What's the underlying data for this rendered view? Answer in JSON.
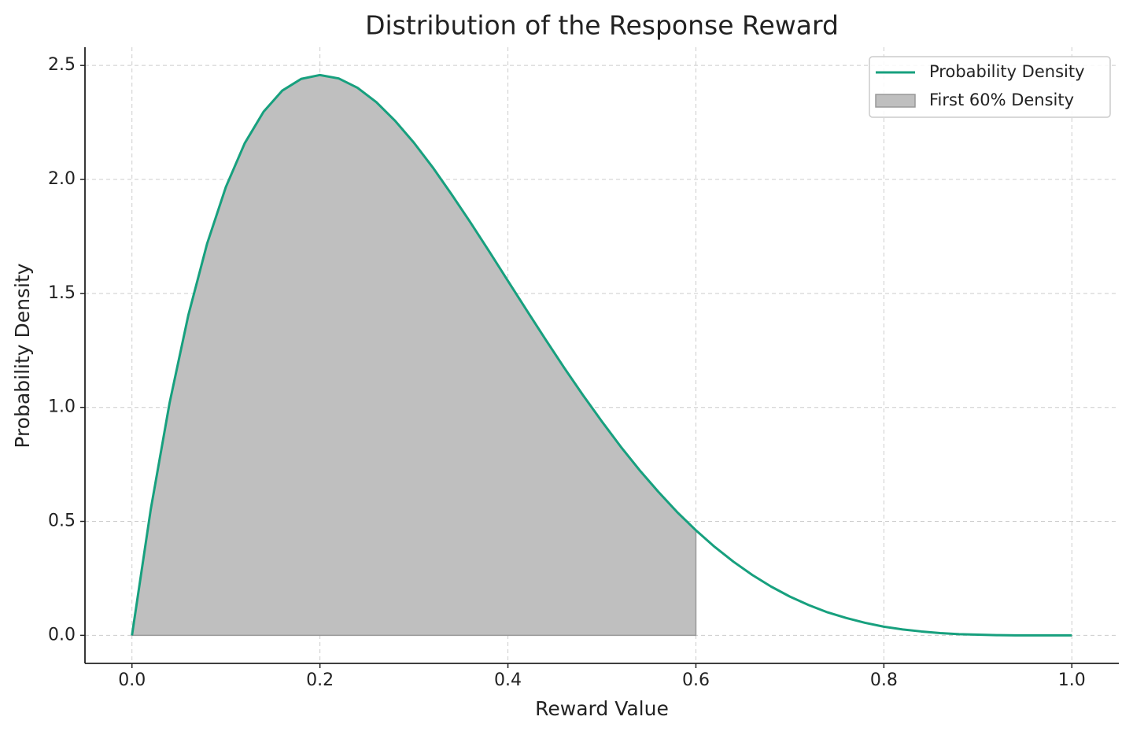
{
  "chart_data": {
    "type": "line",
    "title": "Distribution of the Response Reward",
    "x_label": "Reward Value",
    "y_label": "Probability Density",
    "xlim": [
      -0.05,
      1.05
    ],
    "ylim": [
      -0.123,
      2.58
    ],
    "xticks": [
      {
        "value": 0,
        "label": "0.0"
      },
      0.2,
      0.4,
      0.6,
      0.8,
      {
        "value": 1,
        "label": "1.0"
      }
    ],
    "yticks": [
      {
        "value": 0,
        "label": "0.0"
      },
      0.5,
      {
        "value": 1,
        "label": "1.0"
      },
      1.5,
      {
        "value": 2,
        "label": "2.0"
      },
      2.5
    ],
    "grid": true,
    "legend": "upper right",
    "series": [
      {
        "name": "Probability Density",
        "type": "line",
        "color": "#17a07e",
        "x": [
          0,
          0.02,
          0.04,
          0.06,
          0.08,
          0.1,
          0.12,
          0.14,
          0.16,
          0.18,
          0.2,
          0.22,
          0.24,
          0.26,
          0.28,
          0.3,
          0.32,
          0.34,
          0.36,
          0.38,
          0.4,
          0.42,
          0.44,
          0.46,
          0.48,
          0.5,
          0.52,
          0.54,
          0.56,
          0.58,
          0.6,
          0.62,
          0.64,
          0.66,
          0.68,
          0.7,
          0.72,
          0.74,
          0.76,
          0.78,
          0.8,
          0.82,
          0.84,
          0.86,
          0.88,
          0.9,
          0.92,
          0.94,
          0.96,
          0.98,
          1
        ],
        "values": [
          0,
          0.553,
          1.019,
          1.405,
          1.719,
          1.968,
          2.159,
          2.297,
          2.39,
          2.441,
          2.458,
          2.443,
          2.402,
          2.339,
          2.257,
          2.161,
          2.053,
          1.935,
          1.812,
          1.685,
          1.555,
          1.426,
          1.298,
          1.173,
          1.053,
          0.938,
          0.828,
          0.725,
          0.63,
          0.541,
          0.461,
          0.388,
          0.323,
          0.265,
          0.214,
          0.17,
          0.133,
          0.101,
          0.076,
          0.055,
          0.038,
          0.026,
          0.017,
          0.01,
          0.005,
          0.003,
          0.001,
          0,
          0,
          0,
          0
        ]
      },
      {
        "name": "First 60% Density",
        "type": "area",
        "color": "#bfbfbf",
        "x": [
          0,
          0.02,
          0.04,
          0.06,
          0.08,
          0.1,
          0.12,
          0.14,
          0.16,
          0.18,
          0.2,
          0.22,
          0.24,
          0.26,
          0.28,
          0.3,
          0.32,
          0.34,
          0.36,
          0.38,
          0.4,
          0.42,
          0.44,
          0.46,
          0.48,
          0.5,
          0.52,
          0.54,
          0.56,
          0.58,
          0.6
        ],
        "values": [
          0,
          0.553,
          1.019,
          1.405,
          1.719,
          1.968,
          2.159,
          2.297,
          2.39,
          2.441,
          2.458,
          2.443,
          2.402,
          2.339,
          2.257,
          2.161,
          2.053,
          1.935,
          1.812,
          1.685,
          1.555,
          1.426,
          1.298,
          1.173,
          1.053,
          0.938,
          0.828,
          0.725,
          0.63,
          0.541,
          0.461
        ]
      }
    ]
  }
}
